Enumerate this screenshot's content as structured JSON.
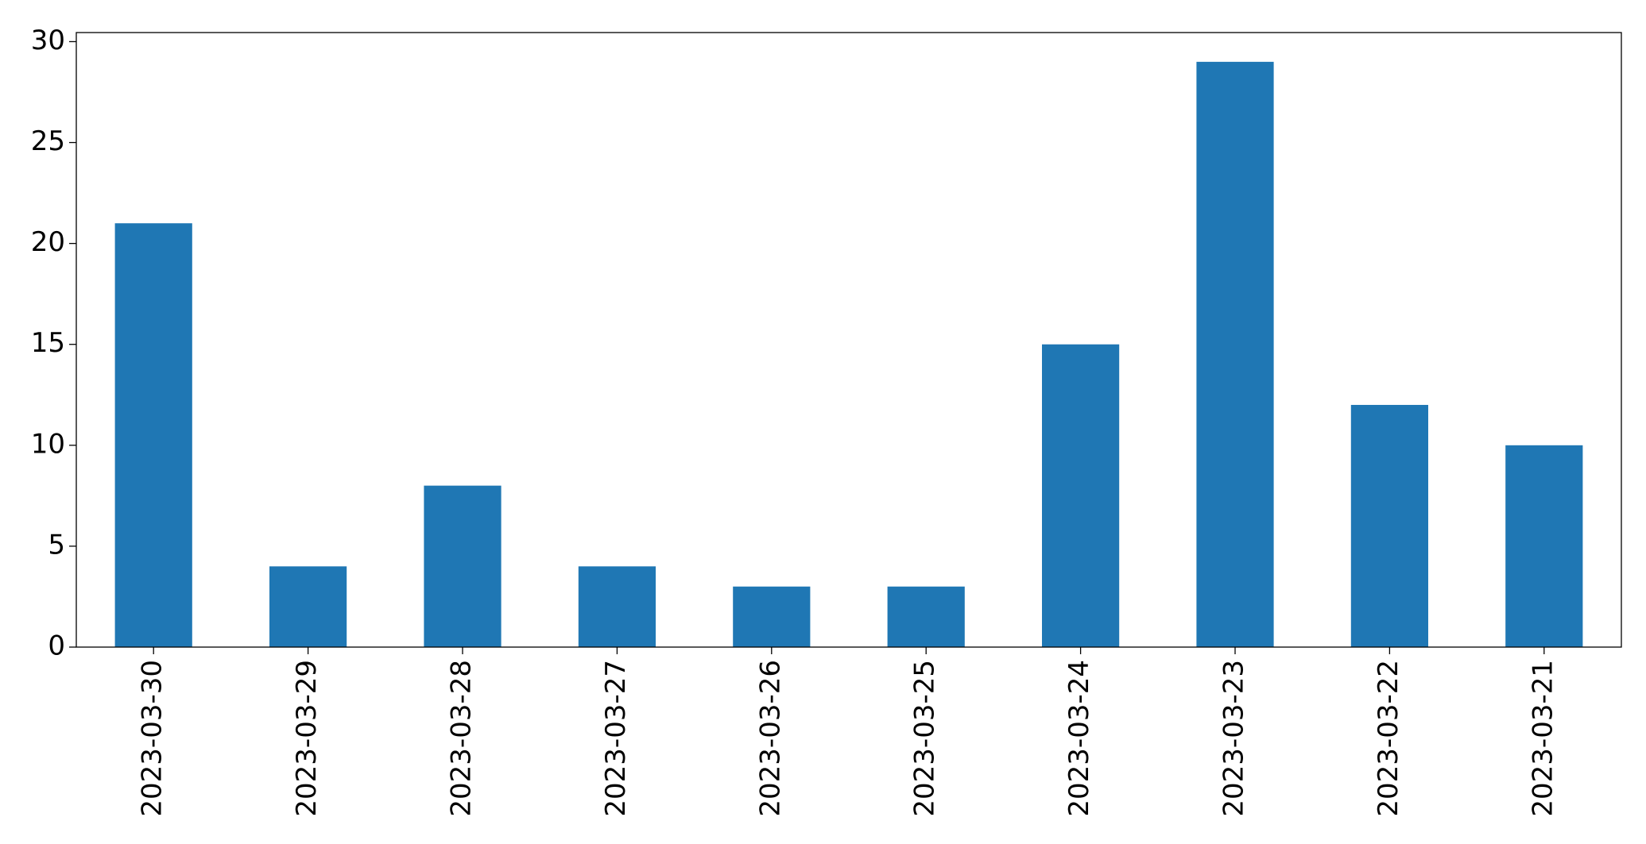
{
  "chart_data": {
    "type": "bar",
    "categories": [
      "2023-03-30",
      "2023-03-29",
      "2023-03-28",
      "2023-03-27",
      "2023-03-26",
      "2023-03-25",
      "2023-03-24",
      "2023-03-23",
      "2023-03-22",
      "2023-03-21"
    ],
    "values": [
      21,
      4,
      8,
      4,
      3,
      3,
      15,
      29,
      12,
      10
    ],
    "color": "#1f77b4",
    "ylim": [
      0,
      30.45
    ],
    "yticks": [
      0,
      5,
      10,
      15,
      20,
      25,
      30
    ],
    "grid": false
  }
}
